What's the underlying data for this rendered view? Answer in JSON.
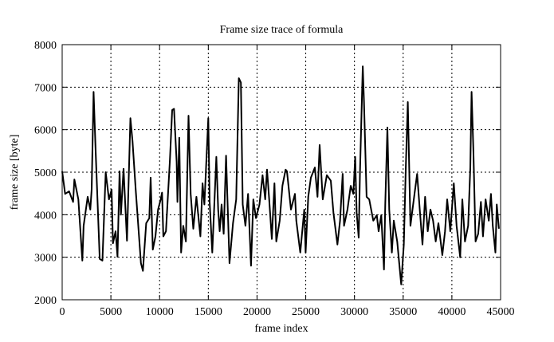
{
  "chart_data": {
    "type": "line",
    "title": "Frame size trace of formula",
    "xlabel": "frame index",
    "ylabel": "frame size [byte]",
    "xlim": [
      0,
      45000
    ],
    "ylim": [
      2000,
      8000
    ],
    "xticks": [
      "0",
      "5000",
      "10000",
      "15000",
      "20000",
      "25000",
      "30000",
      "35000",
      "40000",
      "45000"
    ],
    "yticks": [
      "2000",
      "3000",
      "4000",
      "5000",
      "6000",
      "7000",
      "8000"
    ],
    "grid": true,
    "line_color": "#000000",
    "series": [
      {
        "x": [
          0,
          300,
          710,
          1120,
          1250,
          1660,
          2070,
          2200,
          2620,
          2890,
          3030,
          3220,
          3440,
          3580,
          3850,
          4130,
          4470,
          4800,
          5070,
          5210,
          5480,
          5680,
          5890,
          6030,
          6300,
          6650,
          7000,
          7220,
          7540,
          8080,
          8290,
          8620,
          8940,
          9080,
          9300,
          9570,
          9840,
          10110,
          10250,
          10380,
          10650,
          11060,
          11290,
          11480,
          11750,
          11830,
          12020,
          12210,
          12430,
          12700,
          12970,
          13190,
          13460,
          13780,
          14190,
          14410,
          14600,
          15000,
          15140,
          15410,
          15820,
          16010,
          16170,
          16360,
          16580,
          16820,
          17170,
          17530,
          17860,
          18130,
          18340,
          18530,
          18810,
          19080,
          19380,
          19620,
          19890,
          20250,
          20570,
          20840,
          21030,
          21250,
          21520,
          21790,
          21980,
          22330,
          22610,
          22930,
          23070,
          23480,
          23890,
          24030,
          24440,
          24850,
          24990,
          25260,
          25530,
          25940,
          26210,
          26430,
          26750,
          27160,
          27570,
          27840,
          28250,
          28520,
          28790,
          28930,
          29280,
          29620,
          29890,
          30080,
          30220,
          30440,
          30570,
          30850,
          30980,
          31250,
          31520,
          31930,
          32290,
          32480,
          32750,
          33030,
          33160,
          33380,
          33570,
          33840,
          34040,
          34390,
          34800,
          35070,
          35260,
          35480,
          35750,
          36160,
          36430,
          36700,
          36980,
          37250,
          37520,
          37800,
          38070,
          38340,
          38620,
          39020,
          39300,
          39520,
          39840,
          40200,
          40480,
          40850,
          41070,
          41340,
          41670,
          41890,
          42020,
          42210,
          42430,
          42700,
          42980,
          43190,
          43460,
          43790,
          44010,
          44200,
          44470,
          44610,
          44830
        ],
        "y": [
          5020,
          4490,
          4550,
          4300,
          4830,
          4360,
          2920,
          3740,
          4420,
          4120,
          4600,
          6890,
          5490,
          4600,
          2960,
          2920,
          5000,
          4360,
          4590,
          3330,
          3610,
          3010,
          5020,
          4000,
          5080,
          3390,
          6270,
          5740,
          4600,
          2860,
          2680,
          3800,
          3920,
          4870,
          3180,
          3490,
          4120,
          4360,
          4520,
          3490,
          3610,
          5300,
          6460,
          6490,
          5240,
          4300,
          5810,
          3110,
          3740,
          3370,
          6330,
          4490,
          3670,
          4420,
          3490,
          4740,
          4240,
          6270,
          4300,
          3110,
          5360,
          4120,
          3610,
          4240,
          3550,
          5390,
          2860,
          3800,
          4360,
          7210,
          7110,
          4240,
          3740,
          4490,
          2800,
          4360,
          3920,
          4240,
          4930,
          4360,
          5060,
          4360,
          3430,
          4740,
          3370,
          3860,
          4680,
          5060,
          5020,
          4120,
          4490,
          3860,
          3110,
          4120,
          3110,
          4420,
          4870,
          5110,
          4420,
          5640,
          4360,
          4930,
          4800,
          4050,
          3300,
          3860,
          4960,
          3740,
          4120,
          4680,
          4490,
          5360,
          4050,
          3460,
          5000,
          7490,
          6670,
          4420,
          4360,
          3860,
          3990,
          3610,
          3990,
          2710,
          4240,
          6050,
          4120,
          3110,
          3860,
          3370,
          2360,
          3300,
          5060,
          6650,
          3740,
          4490,
          4960,
          4120,
          3300,
          4420,
          3610,
          4120,
          3860,
          3370,
          3800,
          3050,
          3610,
          4360,
          3610,
          4740,
          3740,
          3000,
          4360,
          3370,
          3740,
          5110,
          6890,
          5490,
          3370,
          3550,
          4300,
          3490,
          4360,
          3860,
          4490,
          3740,
          3110,
          4240,
          3670
        ]
      }
    ]
  }
}
